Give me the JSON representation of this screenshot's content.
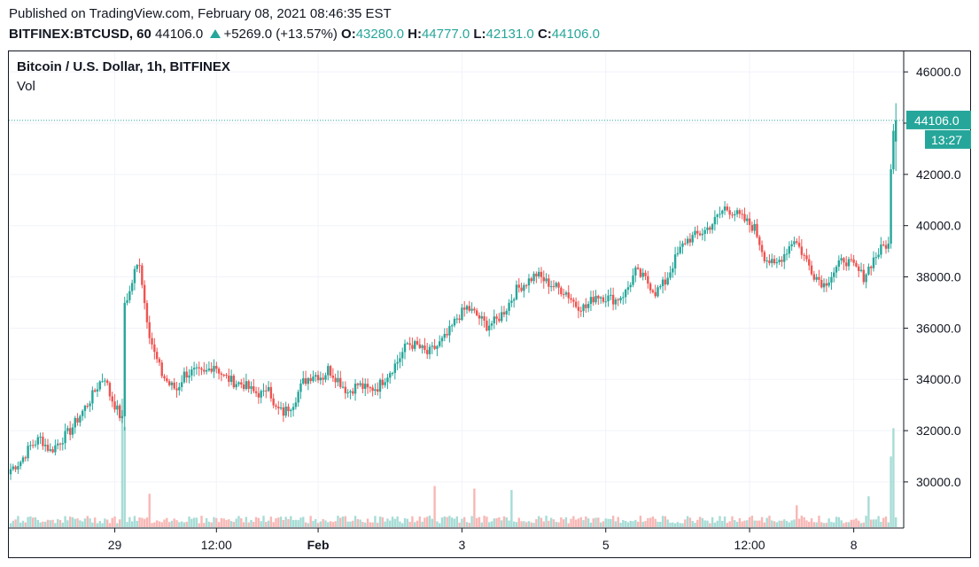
{
  "header": {
    "published": "Published on TradingView.com, February 08, 2021 08:46:35 EST",
    "symbol": "BITFINEX:BTCUSD, 60",
    "last": "44106.0",
    "change": "+5269.0 (+13.57%)",
    "o_label": "O:",
    "o_value": "43280.0",
    "h_label": "H:",
    "h_value": "44777.0",
    "l_label": "L:",
    "l_value": "42131.0",
    "c_label": "C:",
    "c_value": "44106.0"
  },
  "legend": {
    "title": "Bitcoin / U.S. Dollar, 1h, BITFINEX",
    "volume": "Vol"
  },
  "price_tag": {
    "price": "44106.0",
    "countdown": "13:27"
  },
  "colors": {
    "up": "#26a69a",
    "down": "#ef5350",
    "up_vol": "#a7dcd6",
    "down_vol": "#f7b8b6",
    "grid": "#f0f3fa",
    "text": "#131722"
  },
  "chart_data": {
    "type": "candlestick",
    "y_ticks": [
      "46000.0",
      "44000.0",
      "42000.0",
      "40000.0",
      "38000.0",
      "36000.0",
      "34000.0",
      "32000.0",
      "30000.0"
    ],
    "x_ticks": [
      "29",
      "12:00",
      "Feb",
      "3",
      "5",
      "12:00",
      "8"
    ],
    "ylim": [
      28200,
      46800
    ],
    "last_price": 44106.0,
    "anchors": [
      [
        0,
        30500
      ],
      [
        4,
        30800
      ],
      [
        8,
        31400
      ],
      [
        12,
        31700
      ],
      [
        16,
        31200
      ],
      [
        20,
        31600
      ],
      [
        24,
        32000
      ],
      [
        28,
        32600
      ],
      [
        32,
        33200
      ],
      [
        36,
        33900
      ],
      [
        38,
        34100
      ],
      [
        40,
        33400
      ],
      [
        43,
        32800
      ],
      [
        45,
        32400
      ],
      [
        46,
        37000
      ],
      [
        48,
        37400
      ],
      [
        50,
        38200
      ],
      [
        52,
        38600
      ],
      [
        54,
        37000
      ],
      [
        56,
        35800
      ],
      [
        58,
        35000
      ],
      [
        61,
        34200
      ],
      [
        64,
        33800
      ],
      [
        67,
        33600
      ],
      [
        70,
        34200
      ],
      [
        74,
        34300
      ],
      [
        78,
        34200
      ],
      [
        82,
        34600
      ],
      [
        86,
        34100
      ],
      [
        90,
        33900
      ],
      [
        94,
        33800
      ],
      [
        98,
        33500
      ],
      [
        102,
        33400
      ],
      [
        104,
        33900
      ],
      [
        106,
        32900
      ],
      [
        110,
        32700
      ],
      [
        114,
        33100
      ],
      [
        118,
        33900
      ],
      [
        122,
        34200
      ],
      [
        126,
        34100
      ],
      [
        128,
        34400
      ],
      [
        132,
        34000
      ],
      [
        136,
        33500
      ],
      [
        140,
        33800
      ],
      [
        144,
        33600
      ],
      [
        148,
        33700
      ],
      [
        152,
        34200
      ],
      [
        156,
        34700
      ],
      [
        160,
        35400
      ],
      [
        164,
        35300
      ],
      [
        168,
        35000
      ],
      [
        172,
        35300
      ],
      [
        176,
        35700
      ],
      [
        180,
        36400
      ],
      [
        184,
        36800
      ],
      [
        188,
        36500
      ],
      [
        192,
        36100
      ],
      [
        196,
        36300
      ],
      [
        200,
        36800
      ],
      [
        204,
        37500
      ],
      [
        208,
        37800
      ],
      [
        212,
        38100
      ],
      [
        216,
        37800
      ],
      [
        220,
        37600
      ],
      [
        224,
        37400
      ],
      [
        228,
        36900
      ],
      [
        232,
        36800
      ],
      [
        236,
        37300
      ],
      [
        240,
        37200
      ],
      [
        244,
        37100
      ],
      [
        248,
        37400
      ],
      [
        252,
        38200
      ],
      [
        256,
        37900
      ],
      [
        260,
        37400
      ],
      [
        264,
        37800
      ],
      [
        268,
        38700
      ],
      [
        272,
        39400
      ],
      [
        276,
        39600
      ],
      [
        280,
        39800
      ],
      [
        284,
        40200
      ],
      [
        288,
        40700
      ],
      [
        292,
        40500
      ],
      [
        296,
        40200
      ],
      [
        300,
        39900
      ],
      [
        304,
        38800
      ],
      [
        308,
        38400
      ],
      [
        312,
        38900
      ],
      [
        316,
        39500
      ],
      [
        320,
        38800
      ],
      [
        324,
        38100
      ],
      [
        328,
        37700
      ],
      [
        332,
        38200
      ],
      [
        336,
        38700
      ],
      [
        340,
        38400
      ],
      [
        344,
        38000
      ],
      [
        348,
        38700
      ],
      [
        352,
        39200
      ],
      [
        354,
        39300
      ],
      [
        355,
        42200
      ],
      [
        356,
        43700
      ],
      [
        357,
        44106
      ]
    ],
    "volume_spikes": [
      [
        45,
        1.0
      ],
      [
        46,
        0.78
      ],
      [
        56,
        0.26
      ],
      [
        171,
        0.32
      ],
      [
        187,
        0.3
      ],
      [
        202,
        0.29
      ],
      [
        317,
        0.17
      ],
      [
        346,
        0.24
      ],
      [
        355,
        0.55
      ],
      [
        356,
        0.77
      ]
    ],
    "volume_scale_note": "relative volume (0-1)"
  }
}
